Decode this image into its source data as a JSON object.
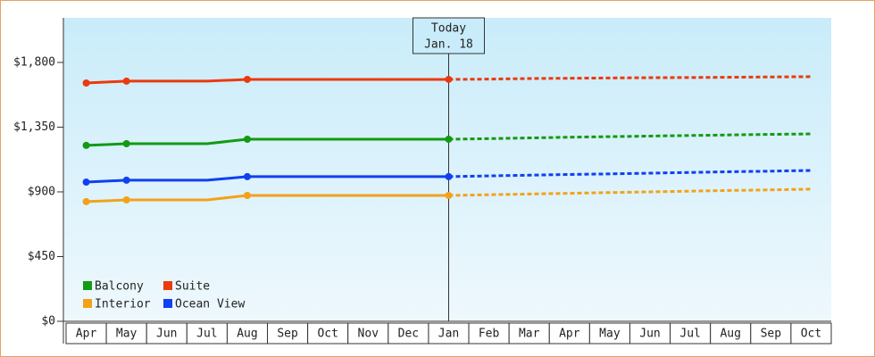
{
  "chart_data": {
    "type": "line",
    "categories": [
      "Apr",
      "May",
      "Jun",
      "Jul",
      "Aug",
      "Sep",
      "Oct",
      "Nov",
      "Dec",
      "Jan",
      "Feb",
      "Mar",
      "Apr",
      "May",
      "Jun",
      "Jul",
      "Aug",
      "Sep",
      "Oct"
    ],
    "series": [
      {
        "name": "Balcony",
        "color": "#139a13",
        "values": [
          1223,
          1235,
          1235,
          1235,
          1266,
          1266,
          1266,
          1266,
          1266,
          1266,
          null,
          null,
          null,
          null,
          null,
          null,
          null,
          null,
          null
        ],
        "forecast": [
          null,
          null,
          null,
          null,
          null,
          null,
          null,
          null,
          null,
          1266,
          1270,
          1275,
          1280,
          1284,
          1288,
          1292,
          1296,
          1300,
          1303
        ]
      },
      {
        "name": "Suite",
        "color": "#ea3a0e",
        "values": [
          1657,
          1670,
          1670,
          1670,
          1682,
          1682,
          1682,
          1682,
          1682,
          1682,
          null,
          null,
          null,
          null,
          null,
          null,
          null,
          null,
          null
        ],
        "forecast": [
          null,
          null,
          null,
          null,
          null,
          null,
          null,
          null,
          null,
          1682,
          1684,
          1688,
          1690,
          1692,
          1694,
          1695,
          1697,
          1699,
          1701
        ]
      },
      {
        "name": "Interior",
        "color": "#f2a21a",
        "values": [
          832,
          844,
          844,
          844,
          875,
          875,
          875,
          875,
          875,
          875,
          null,
          null,
          null,
          null,
          null,
          null,
          null,
          null,
          null
        ],
        "forecast": [
          null,
          null,
          null,
          null,
          null,
          null,
          null,
          null,
          null,
          875,
          880,
          885,
          890,
          895,
          900,
          905,
          910,
          914,
          919
        ]
      },
      {
        "name": "Ocean View",
        "color": "#1040f0",
        "values": [
          968,
          981,
          981,
          981,
          1006,
          1006,
          1006,
          1006,
          1006,
          1006,
          null,
          null,
          null,
          null,
          null,
          null,
          null,
          null,
          null
        ],
        "forecast": [
          null,
          null,
          null,
          null,
          null,
          null,
          null,
          null,
          null,
          1006,
          1011,
          1016,
          1021,
          1025,
          1030,
          1035,
          1040,
          1044,
          1049
        ]
      }
    ],
    "annotation": [
      "Today",
      "Jan. 18"
    ],
    "ylim": [
      0,
      2110
    ],
    "yticks": [
      {
        "value": 0,
        "label": "$0"
      },
      {
        "value": 450,
        "label": "$450"
      },
      {
        "value": 900,
        "label": "$900"
      },
      {
        "value": 1350,
        "label": "$1,350"
      },
      {
        "value": 1800,
        "label": "$1,800"
      }
    ]
  }
}
